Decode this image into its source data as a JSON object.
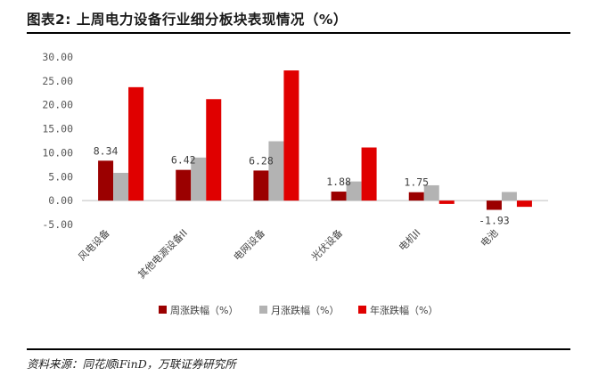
{
  "title": "图表2: 上周电力设备行业细分板块表现情况（%）",
  "source": "资料来源：同花顺iFinD，万联证券研究所",
  "chart_data": {
    "type": "bar",
    "categories": [
      "风电设备",
      "其他电源设备II",
      "电网设备",
      "光伏设备",
      "电机II",
      "电池"
    ],
    "series": [
      {
        "name": "周涨跌幅（%）",
        "color": "#9b0000",
        "values": [
          8.34,
          6.42,
          6.28,
          1.88,
          1.75,
          -1.93
        ]
      },
      {
        "name": "月涨跌幅（%）",
        "color": "#b3b3b3",
        "values": [
          5.8,
          9.0,
          12.4,
          4.0,
          3.2,
          1.8
        ]
      },
      {
        "name": "年涨跌幅（%）",
        "color": "#e00000",
        "values": [
          23.7,
          21.2,
          27.2,
          11.1,
          -0.7,
          -1.3
        ]
      }
    ],
    "data_labels": [
      "8.34",
      "6.42",
      "6.28",
      "1.88",
      "1.75",
      "-1.93"
    ],
    "ylim": [
      -5,
      30
    ],
    "yticks": [
      "-5.00",
      "0.00",
      "5.00",
      "10.00",
      "15.00",
      "20.00",
      "25.00",
      "30.00"
    ],
    "ytick_values": [
      -5,
      0,
      5,
      10,
      15,
      20,
      25,
      30
    ],
    "grid": false,
    "legend": "bottom"
  }
}
